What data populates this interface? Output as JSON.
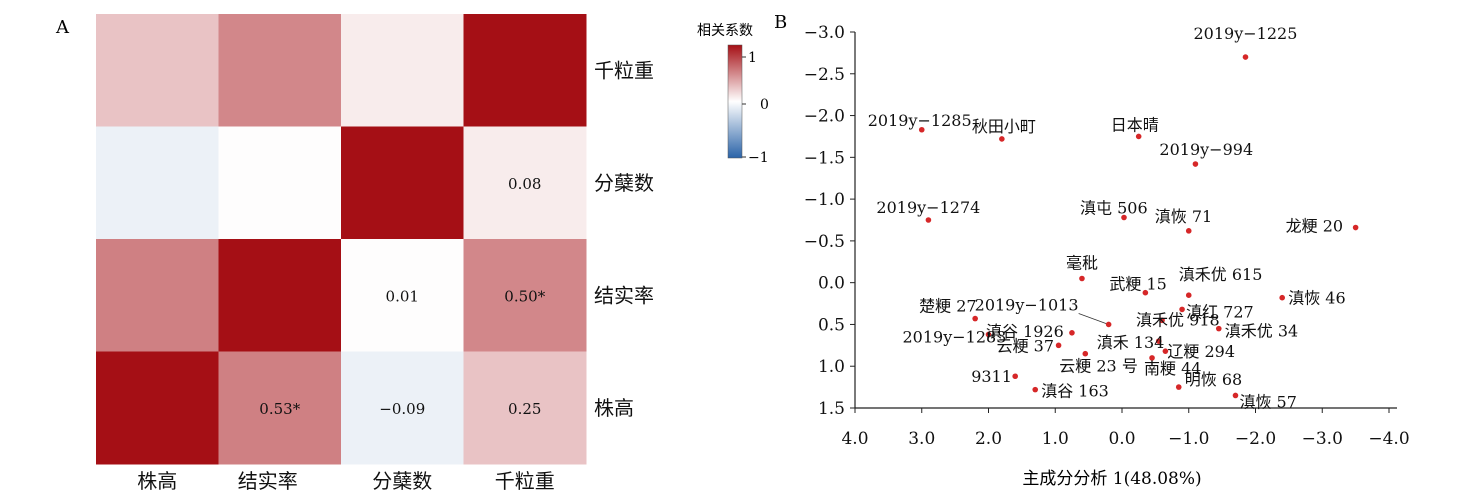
{
  "panel_a": {
    "label": "A",
    "colorbar": {
      "title": "相关系数",
      "ticks": [
        "1",
        "0",
        "−1"
      ],
      "colors": {
        "high": "#a50f15",
        "mid": "#ffffff",
        "low": "#2a63a8"
      }
    }
  },
  "panel_b": {
    "label": "B"
  },
  "chart_data": [
    {
      "type": "heatmap",
      "title": "",
      "column_labels": [
        "株高",
        "结实率",
        "分蘖数",
        "千粒重"
      ],
      "row_labels": [
        "千粒重",
        "分蘖数",
        "结实率",
        "株高"
      ],
      "values": [
        [
          0.25,
          0.5,
          0.08,
          1.0
        ],
        [
          -0.09,
          0.01,
          1.0,
          0.08
        ],
        [
          0.53,
          1.0,
          0.01,
          0.5
        ],
        [
          1.0,
          0.53,
          -0.09,
          0.25
        ]
      ],
      "cell_labels": [
        [
          "",
          "",
          "",
          ""
        ],
        [
          "",
          "",
          "",
          "0.08"
        ],
        [
          "",
          "",
          "0.01",
          "0.50*"
        ],
        [
          "",
          "0.53*",
          "−0.09",
          "0.25"
        ]
      ],
      "color_range": [
        -1,
        1
      ]
    },
    {
      "type": "scatter",
      "xlabel": "主成分分析 1(48.08%)",
      "ylabel": "",
      "xlim": [
        4.0,
        -4.0
      ],
      "ylim": [
        -3.0,
        1.5
      ],
      "x_inverted": true,
      "y_inverted": true,
      "x_ticks": [
        "4.0",
        "3.0",
        "2.0",
        "1.0",
        "0.0",
        "−1.0",
        "−2.0",
        "−3.0",
        "−4.0"
      ],
      "y_ticks": [
        "−3.0",
        "−2.5",
        "−2.0",
        "−1.5",
        "−1.0",
        "−0.5",
        "0.0",
        "0.5",
        "1.0",
        "1.5"
      ],
      "point_color": "#d62728",
      "points": [
        {
          "name": "2019y−1225",
          "x": -1.85,
          "y": -2.7
        },
        {
          "name": "2019y−1285",
          "x": 3.0,
          "y": -1.83
        },
        {
          "name": "秋田小町",
          "x": 1.8,
          "y": -1.72
        },
        {
          "name": "日本晴",
          "x": -0.25,
          "y": -1.75
        },
        {
          "name": "2019y−994",
          "x": -1.1,
          "y": -1.42
        },
        {
          "name": "2019y−1274",
          "x": 2.9,
          "y": -0.75
        },
        {
          "name": "滇屯 506",
          "x": -0.03,
          "y": -0.78
        },
        {
          "name": "滇恢 71",
          "x": -1.0,
          "y": -0.62
        },
        {
          "name": "龙粳 20",
          "x": -3.5,
          "y": -0.66
        },
        {
          "name": "毫秕",
          "x": 0.6,
          "y": -0.05
        },
        {
          "name": "武粳 15",
          "x": -0.35,
          "y": 0.12
        },
        {
          "name": "滇禾优 615",
          "x": -1.0,
          "y": 0.15
        },
        {
          "name": "滇恢 46",
          "x": -2.4,
          "y": 0.18
        },
        {
          "name": "楚粳 27",
          "x": 2.2,
          "y": 0.43
        },
        {
          "name": "2019y−1013",
          "x": 0.2,
          "y": 0.5
        },
        {
          "name": "滇红 727",
          "x": -0.9,
          "y": 0.32
        },
        {
          "name": "滇禾优 918",
          "x": -0.6,
          "y": 0.45
        },
        {
          "name": "滇禾优 34",
          "x": -1.45,
          "y": 0.55
        },
        {
          "name": "2019y−1283",
          "x": 2.0,
          "y": 0.62
        },
        {
          "name": "滇谷 1926",
          "x": 0.75,
          "y": 0.6
        },
        {
          "name": "滇禾 134",
          "x": -0.55,
          "y": 0.7
        },
        {
          "name": "云粳 37",
          "x": 0.95,
          "y": 0.75
        },
        {
          "name": "云粳 23 号",
          "x": 0.55,
          "y": 0.85
        },
        {
          "name": "辽粳 294",
          "x": -0.65,
          "y": 0.82
        },
        {
          "name": "南粳 44",
          "x": -0.45,
          "y": 0.9
        },
        {
          "name": "9311",
          "x": 1.6,
          "y": 1.12
        },
        {
          "name": "明恢 68",
          "x": -0.85,
          "y": 1.25
        },
        {
          "name": "滇谷 163",
          "x": 1.3,
          "y": 1.28
        },
        {
          "name": "滇恢 57",
          "x": -1.7,
          "y": 1.35
        }
      ]
    }
  ]
}
